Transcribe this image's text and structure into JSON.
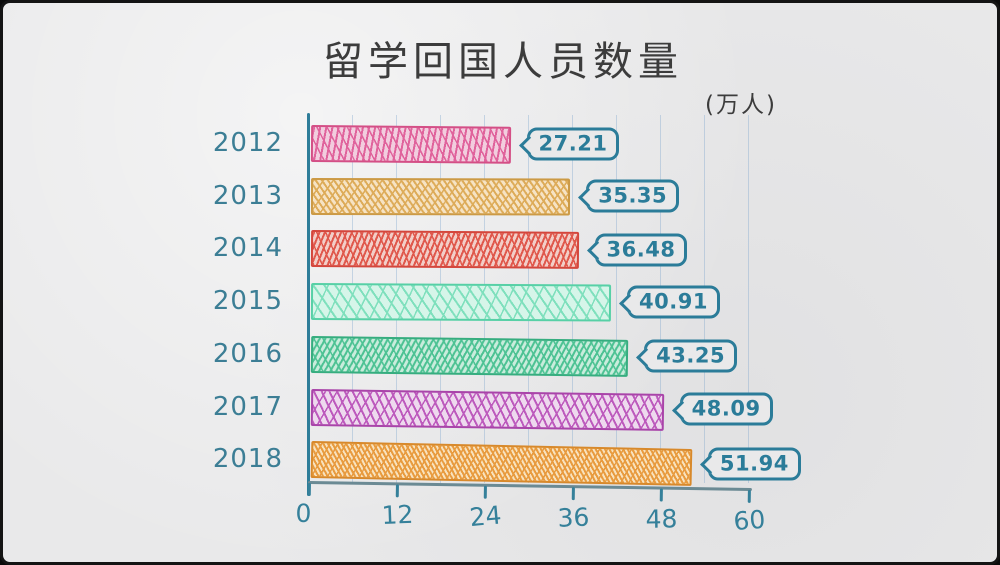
{
  "window": {
    "frame_background": "#e9e9ea",
    "frame_border_color": "#141414"
  },
  "chart_data": {
    "type": "bar",
    "orientation": "horizontal",
    "style": "hand-drawn sketch on paper",
    "title": "留学回国人员数量",
    "unit_label": "(万人)",
    "categories": [
      "2012",
      "2013",
      "2014",
      "2015",
      "2016",
      "2017",
      "2018"
    ],
    "values": [
      27.21,
      35.35,
      36.48,
      40.91,
      43.25,
      48.09,
      51.94
    ],
    "value_labels": [
      "27.21",
      "35.35",
      "36.48",
      "40.91",
      "43.25",
      "48.09",
      "51.94"
    ],
    "xlim": [
      0,
      60
    ],
    "x_ticks": [
      "0",
      "12",
      "24",
      "36",
      "48",
      "60"
    ],
    "grid": {
      "vertical_minor_step": 6,
      "color": "#9db9d4"
    },
    "legend": "none",
    "colors": {
      "title_color": "#3c3c3c",
      "category_label_color": "#3c7e95",
      "tick_label_color": "#35809a",
      "value_bubble_color": "#2b7c99",
      "y_axis_color": "#2e7d99",
      "x_axis_color": "#6b8a94"
    },
    "bar_styles": [
      {
        "name": "pink",
        "base": "#f2cdde",
        "stroke": "#e0639c",
        "border": "#d44f86"
      },
      {
        "name": "tan",
        "base": "#f6e3c4",
        "stroke": "#ddab58",
        "border": "#cc9a45"
      },
      {
        "name": "red",
        "base": "#f2cec8",
        "stroke": "#e0584c",
        "border": "#d4463c"
      },
      {
        "name": "mint",
        "base": "#d6f5e9",
        "stroke": "#7fe0bd",
        "border": "#57d0a6"
      },
      {
        "name": "green",
        "base": "#c9ecdc",
        "stroke": "#4cc293",
        "border": "#36ad7f"
      },
      {
        "name": "magenta",
        "base": "#eed9ee",
        "stroke": "#bd5abd",
        "border": "#a944a9"
      },
      {
        "name": "orange",
        "base": "#f8e2bd",
        "stroke": "#e89b3f",
        "border": "#d8892b"
      }
    ]
  }
}
